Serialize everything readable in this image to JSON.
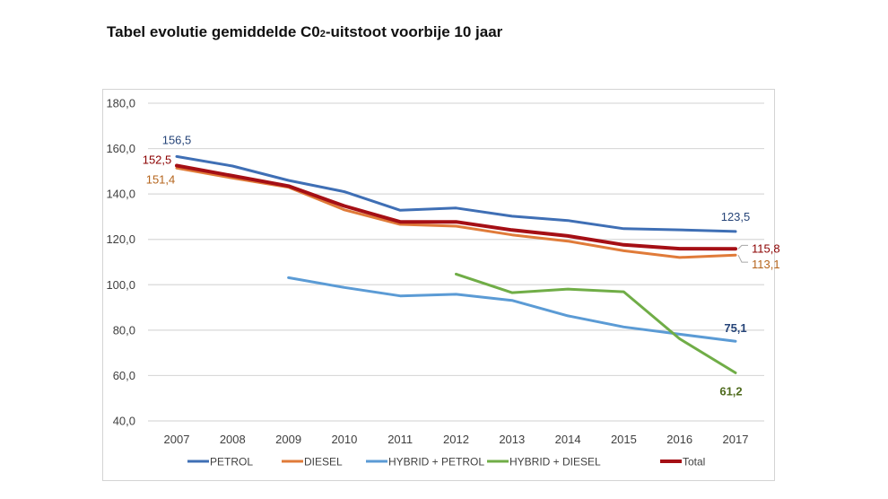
{
  "chart_data": {
    "type": "line",
    "title_main": "Tabel evolutie gemiddelde C0",
    "title_sub": "2",
    "title_rest": "-uitstoot voorbije 10 jaar",
    "title": "Tabel evolutie gemiddelde C02-uitstoot voorbije 10 jaar",
    "xlabel": "",
    "ylabel": "",
    "ylim": [
      40,
      180
    ],
    "yticks": [
      40,
      60,
      80,
      100,
      120,
      140,
      160,
      180
    ],
    "ytick_labels": [
      "40,0",
      "60,0",
      "80,0",
      "100,0",
      "120,0",
      "140,0",
      "160,0",
      "180,0"
    ],
    "x": [
      "2007",
      "2008",
      "2009",
      "2010",
      "2011",
      "2012",
      "2013",
      "2014",
      "2015",
      "2016",
      "2017"
    ],
    "grid": true,
    "legend_position": "bottom",
    "series": [
      {
        "name": "PETROL",
        "color": "#3f6fb5",
        "width": 3,
        "values": [
          156.5,
          152.3,
          146.0,
          141.0,
          132.8,
          133.8,
          130.2,
          128.3,
          124.7,
          124.2,
          123.5
        ],
        "labels": [
          {
            "index": 0,
            "text": "156,5",
            "color": "#264478"
          },
          {
            "index": 10,
            "text": "123,5",
            "color": "#264478"
          }
        ]
      },
      {
        "name": "DIESEL",
        "color": "#e07b39",
        "width": 3,
        "values": [
          151.4,
          147.0,
          143.0,
          133.0,
          126.6,
          125.8,
          122.0,
          119.2,
          115.0,
          112.0,
          113.1
        ],
        "labels": [
          {
            "index": 0,
            "text": "151,4",
            "color": "#b5651d"
          },
          {
            "index": 10,
            "text": "113,1",
            "color": "#b5651d"
          }
        ]
      },
      {
        "name": "HYBRID + PETROL",
        "color": "#5b9bd5",
        "width": 3,
        "values": [
          null,
          null,
          103.1,
          98.8,
          95.1,
          95.8,
          93.1,
          86.3,
          81.4,
          78.2,
          75.1
        ],
        "labels": [
          {
            "index": 10,
            "text": "75,1",
            "color": "#264478"
          }
        ]
      },
      {
        "name": "HYBRID + DIESEL",
        "color": "#70ad47",
        "width": 3,
        "values": [
          null,
          null,
          null,
          null,
          null,
          104.7,
          96.5,
          98.1,
          96.9,
          76.2,
          61.2
        ],
        "labels": [
          {
            "index": 10,
            "text": "61,2",
            "color": "#4f6b1e"
          }
        ]
      },
      {
        "name": "Total",
        "color": "#a50f15",
        "width": 4,
        "values": [
          152.5,
          148.0,
          143.5,
          134.7,
          127.7,
          127.7,
          124.1,
          121.5,
          117.6,
          115.9,
          115.8
        ],
        "labels": [
          {
            "index": 0,
            "text": "152,5",
            "color": "#8b0000"
          },
          {
            "index": 10,
            "text": "115,8",
            "color": "#8b0000"
          }
        ]
      }
    ]
  }
}
